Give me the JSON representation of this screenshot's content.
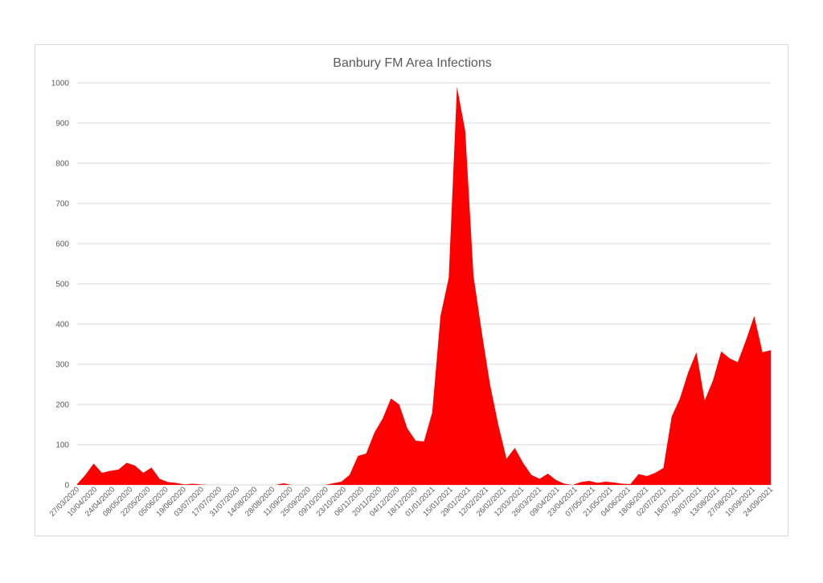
{
  "chart_data": {
    "type": "area",
    "title": "Banbury FM Area Infections",
    "xlabel": "",
    "ylabel": "",
    "ylim": [
      0,
      1000
    ],
    "yticks": [
      0,
      100,
      200,
      300,
      400,
      500,
      600,
      700,
      800,
      900,
      1000
    ],
    "grid": true,
    "legend": "none",
    "color": "#ff0000",
    "x_labels": [
      "27/03/2020",
      "10/04/2020",
      "24/04/2020",
      "08/05/2020",
      "22/05/2020",
      "05/06/2020",
      "19/06/2020",
      "03/07/2020",
      "17/07/2020",
      "31/07/2020",
      "14/08/2020",
      "28/08/2020",
      "11/09/2020",
      "25/09/2020",
      "09/10/2020",
      "23/10/2020",
      "06/11/2020",
      "20/11/2020",
      "04/12/2020",
      "18/12/2020",
      "01/01/2021",
      "15/01/2021",
      "29/01/2021",
      "12/02/2021",
      "26/02/2021",
      "12/03/2021",
      "26/03/2021",
      "09/04/2021",
      "23/04/2021",
      "07/05/2021",
      "21/05/2021",
      "04/06/2021",
      "18/06/2021",
      "02/07/2021",
      "16/07/2021",
      "30/07/2021",
      "13/08/2021",
      "27/08/2021",
      "10/09/2021",
      "24/09/2021"
    ],
    "values": [
      2,
      25,
      53,
      30,
      35,
      38,
      55,
      48,
      30,
      43,
      15,
      7,
      5,
      1,
      3,
      1,
      0,
      0,
      0,
      0,
      0,
      0,
      0,
      0,
      0,
      4,
      0,
      0,
      0,
      0,
      0,
      4,
      8,
      25,
      72,
      78,
      130,
      165,
      215,
      200,
      140,
      110,
      108,
      180,
      420,
      515,
      990,
      880,
      520,
      380,
      250,
      150,
      65,
      92,
      55,
      25,
      15,
      28,
      12,
      3,
      0,
      7,
      10,
      5,
      8,
      6,
      3,
      2,
      27,
      22,
      30,
      42,
      170,
      215,
      280,
      330,
      210,
      260,
      332,
      315,
      305,
      360,
      420,
      330,
      335
    ]
  }
}
